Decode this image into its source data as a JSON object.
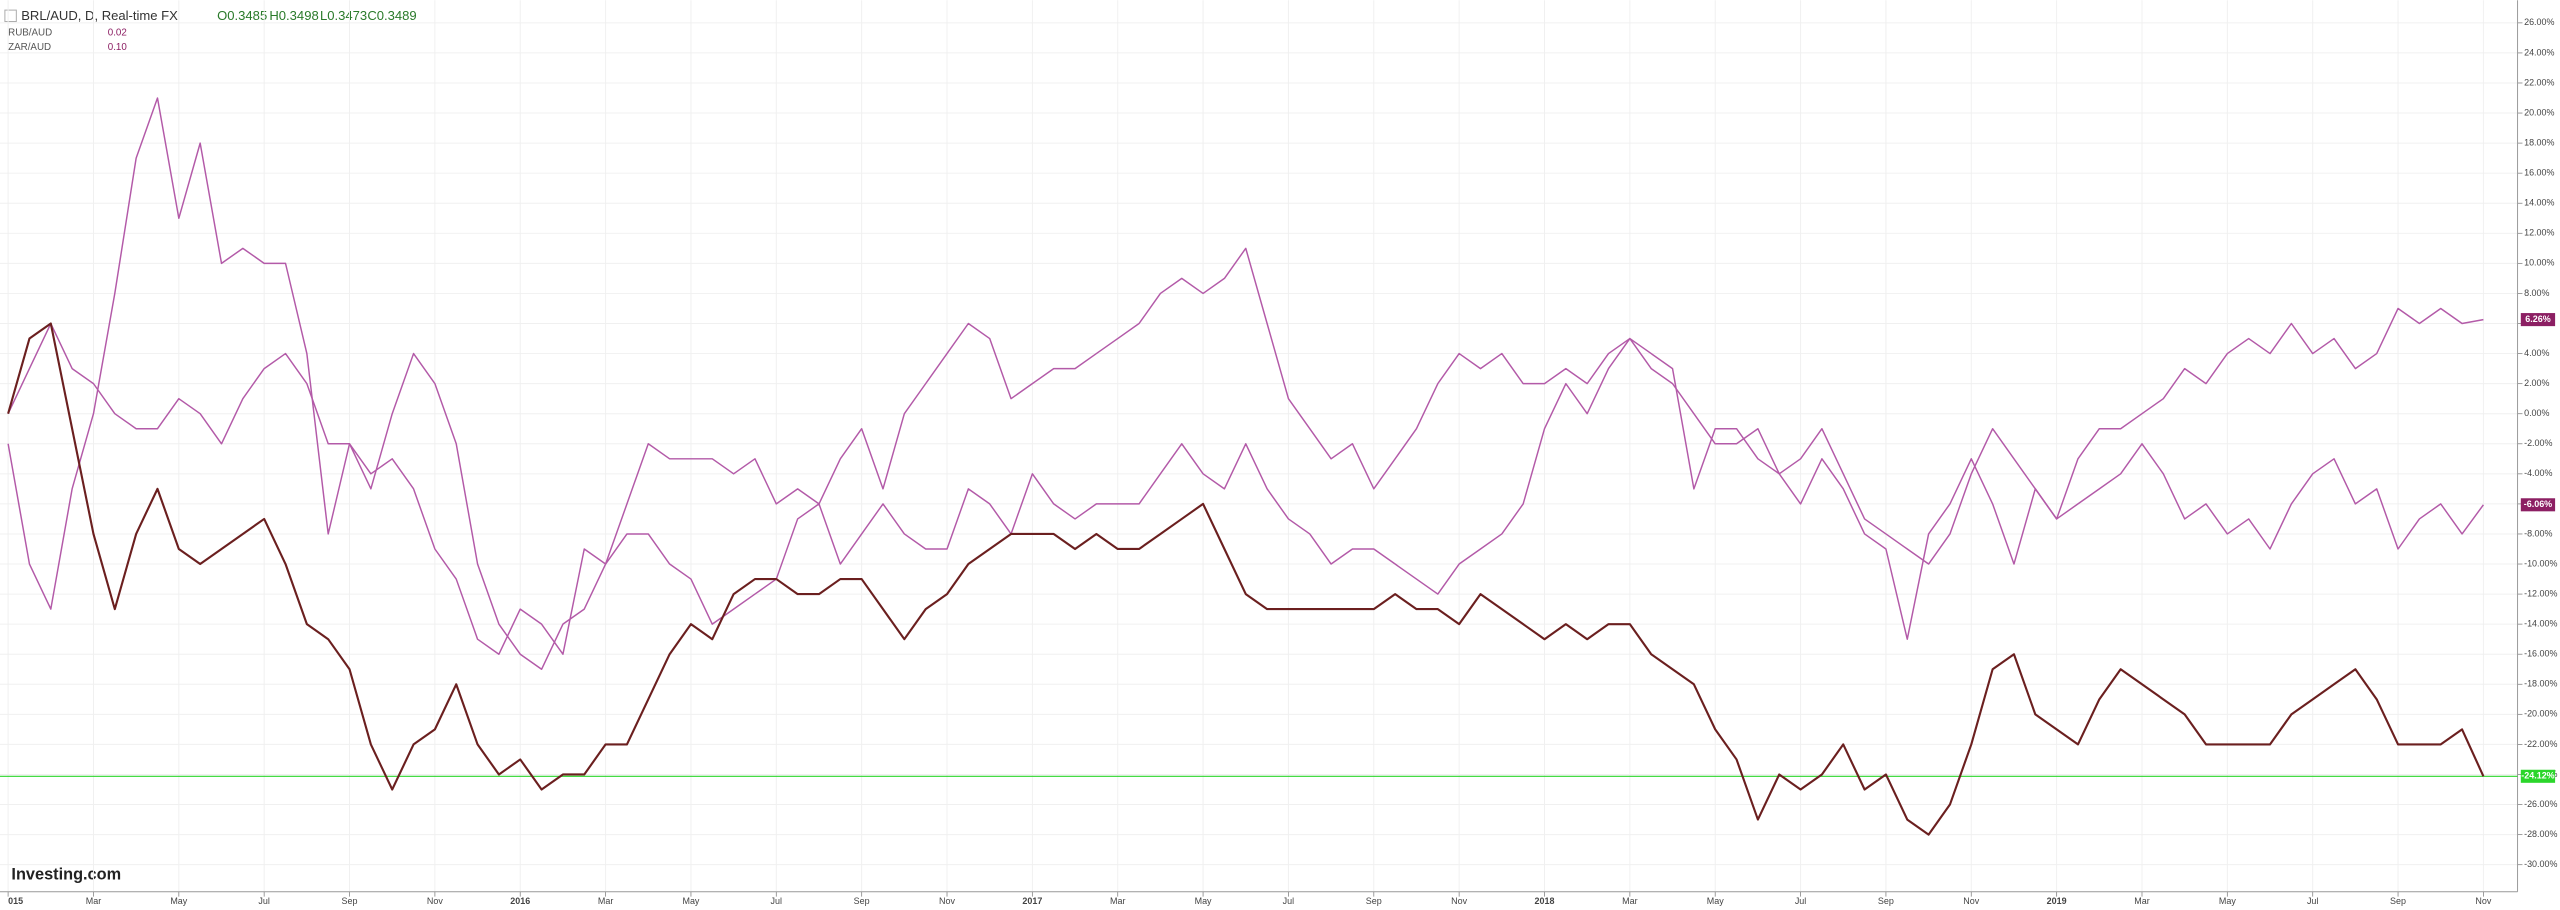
{
  "chart_data": {
    "type": "line",
    "title": "BRL/AUD, D, Real-time FX",
    "ohlc": [
      "O0.3485",
      "H0.3498",
      "L0.3473",
      "C0.3489"
    ],
    "watermark": "Investing.com",
    "x": [
      0,
      0.5,
      1,
      1.5,
      2,
      2.5,
      3,
      3.5,
      4,
      4.5,
      5,
      5.5,
      6,
      6.5,
      7,
      7.5,
      8,
      8.5,
      9,
      9.5,
      10,
      10.5,
      11,
      11.5,
      12,
      12.5,
      13,
      13.5,
      14,
      14.5,
      15,
      15.5,
      16,
      16.5,
      17,
      17.5,
      18,
      18.5,
      19,
      19.5,
      20,
      20.5,
      21,
      21.5,
      22,
      22.5,
      23,
      23.5,
      24,
      24.5,
      25,
      25.5,
      26,
      26.5,
      27,
      27.5,
      28,
      28.5,
      29,
      29.5,
      30,
      30.5,
      31,
      31.5,
      32,
      32.5,
      33,
      33.5,
      34,
      34.5,
      35,
      35.5,
      36,
      36.5,
      37,
      37.5,
      38,
      38.5,
      39,
      39.5,
      40,
      40.5,
      41,
      41.5,
      42,
      42.5,
      43,
      43.5,
      44,
      44.5,
      45,
      45.5,
      46,
      46.5,
      47,
      47.5,
      48,
      48.5,
      49,
      49.5,
      50,
      50.5,
      51,
      51.5,
      52,
      52.5,
      53,
      53.5,
      54,
      54.5,
      55,
      55.5,
      56,
      56.5,
      57,
      57.5,
      58
    ],
    "xlim": [
      -0.19,
      58.8
    ],
    "ylim": [
      -31.8,
      27.5
    ],
    "xticks": [
      {
        "value": 0,
        "label": "015"
      },
      {
        "value": 2,
        "label": "Mar"
      },
      {
        "value": 4,
        "label": "May"
      },
      {
        "value": 6,
        "label": "Jul"
      },
      {
        "value": 8,
        "label": "Sep"
      },
      {
        "value": 10,
        "label": "Nov"
      },
      {
        "value": 12,
        "label": "2016"
      },
      {
        "value": 14,
        "label": "Mar"
      },
      {
        "value": 16,
        "label": "May"
      },
      {
        "value": 18,
        "label": "Jul"
      },
      {
        "value": 20,
        "label": "Sep"
      },
      {
        "value": 22,
        "label": "Nov"
      },
      {
        "value": 24,
        "label": "2017"
      },
      {
        "value": 26,
        "label": "Mar"
      },
      {
        "value": 28,
        "label": "May"
      },
      {
        "value": 30,
        "label": "Jul"
      },
      {
        "value": 32,
        "label": "Sep"
      },
      {
        "value": 34,
        "label": "Nov"
      },
      {
        "value": 36,
        "label": "2018"
      },
      {
        "value": 38,
        "label": "Mar"
      },
      {
        "value": 40,
        "label": "May"
      },
      {
        "value": 42,
        "label": "Jul"
      },
      {
        "value": 44,
        "label": "Sep"
      },
      {
        "value": 46,
        "label": "Nov"
      },
      {
        "value": 48,
        "label": "2019"
      },
      {
        "value": 50,
        "label": "Mar"
      },
      {
        "value": 52,
        "label": "May"
      },
      {
        "value": 54,
        "label": "Jul"
      },
      {
        "value": 56,
        "label": "Sep"
      },
      {
        "value": 58,
        "label": "Nov"
      }
    ],
    "yticks": [
      {
        "value": 26,
        "label": "26.00%"
      },
      {
        "value": 24,
        "label": "24.00%"
      },
      {
        "value": 22,
        "label": "22.00%"
      },
      {
        "value": 20,
        "label": "20.00%"
      },
      {
        "value": 18,
        "label": "18.00%"
      },
      {
        "value": 16,
        "label": "16.00%"
      },
      {
        "value": 14,
        "label": "14.00%"
      },
      {
        "value": 12,
        "label": "12.00%"
      },
      {
        "value": 10,
        "label": "10.00%"
      },
      {
        "value": 8,
        "label": "8.00%"
      },
      {
        "value": 6,
        "label": "6.00%"
      },
      {
        "value": 4,
        "label": "4.00%"
      },
      {
        "value": 2,
        "label": "2.00%"
      },
      {
        "value": 0,
        "label": "0.00%"
      },
      {
        "value": -2,
        "label": "-2.00%"
      },
      {
        "value": -4,
        "label": "-4.00%"
      },
      {
        "value": -6,
        "label": "-6.00%"
      },
      {
        "value": -8,
        "label": "-8.00%"
      },
      {
        "value": -10,
        "label": "-10.00%"
      },
      {
        "value": -12,
        "label": "-12.00%"
      },
      {
        "value": -14,
        "label": "-14.00%"
      },
      {
        "value": -16,
        "label": "-16.00%"
      },
      {
        "value": -18,
        "label": "-18.00%"
      },
      {
        "value": -20,
        "label": "-20.00%"
      },
      {
        "value": -22,
        "label": "-22.00%"
      },
      {
        "value": -24,
        "label": "-24.00%"
      },
      {
        "value": -26,
        "label": "-26.00%"
      },
      {
        "value": -28,
        "label": "-28.00%"
      },
      {
        "value": -30,
        "label": "-30.00%"
      }
    ],
    "grid": true,
    "series": [
      {
        "name": "BRL/AUD",
        "color": "#6b1f1f",
        "end_label": "-24.12%",
        "end_color": "#2bd62b",
        "values": [
          0,
          5,
          6,
          -1,
          -8,
          -13,
          -8,
          -5,
          -9,
          -10,
          -9,
          -8,
          -7,
          -10,
          -14,
          -15,
          -17,
          -22,
          -25,
          -22,
          -21,
          -18,
          -22,
          -24,
          -23,
          -25,
          -24,
          -24,
          -22,
          -22,
          -19,
          -16,
          -14,
          -15,
          -12,
          -11,
          -11,
          -12,
          -12,
          -11,
          -11,
          -13,
          -15,
          -13,
          -12,
          -10,
          -9,
          -8,
          -8,
          -8,
          -9,
          -8,
          -9,
          -9,
          -8,
          -7,
          -6,
          -9,
          -12,
          -13,
          -13,
          -13,
          -13,
          -13,
          -13,
          -12,
          -13,
          -13,
          -14,
          -12,
          -13,
          -14,
          -15,
          -14,
          -15,
          -14,
          -14,
          -16,
          -17,
          -18,
          -21,
          -23,
          -27,
          -24,
          -25,
          -24,
          -22,
          -25,
          -24,
          -27,
          -28,
          -26,
          -22,
          -17,
          -16,
          -20,
          -21,
          -22,
          -19,
          -17,
          -18,
          -19,
          -20,
          -22,
          -22,
          -22,
          -22,
          -20,
          -19,
          -18,
          -17,
          -19,
          -22,
          -22,
          -22,
          -21,
          -24.12
        ]
      },
      {
        "name": "RUB/AUD",
        "legend_value": "0.02",
        "color": "#b35aa8",
        "end_label": "-6.06%",
        "end_color": "#8c1f63",
        "values": [
          0,
          3,
          6,
          3,
          2,
          0,
          -1,
          -1,
          1,
          0,
          -2,
          1,
          3,
          4,
          2,
          -2,
          -2,
          -5,
          0,
          4,
          2,
          -2,
          -10,
          -14,
          -16,
          -17,
          -14,
          -13,
          -10,
          -8,
          -8,
          -10,
          -11,
          -14,
          -13,
          -12,
          -11,
          -7,
          -6,
          -10,
          -8,
          -6,
          -8,
          -9,
          -9,
          -5,
          -6,
          -8,
          -4,
          -6,
          -7,
          -6,
          -6,
          -6,
          -4,
          -2,
          -4,
          -5,
          -2,
          -5,
          -7,
          -8,
          -10,
          -9,
          -9,
          -10,
          -11,
          -12,
          -10,
          -9,
          -8,
          -6,
          -1,
          2,
          0,
          3,
          5,
          3,
          2,
          0,
          -2,
          -2,
          -1,
          -4,
          -3,
          -1,
          -4,
          -7,
          -8,
          -9,
          -10,
          -8,
          -4,
          -1,
          -3,
          -5,
          -7,
          -6,
          -5,
          -4,
          -2,
          -4,
          -7,
          -6,
          -8,
          -7,
          -9,
          -6,
          -4,
          -3,
          -6,
          -5,
          -9,
          -7,
          -6,
          -8,
          -6.06
        ]
      },
      {
        "name": "ZAR/AUD",
        "legend_value": "0.10",
        "color": "#b35aa8",
        "end_label": "6.26%",
        "end_color": "#8c1f63",
        "values": [
          -2,
          -10,
          -13,
          -5,
          0,
          8,
          17,
          21,
          13,
          18,
          10,
          11,
          10,
          10,
          4,
          -8,
          -2,
          -4,
          -3,
          -5,
          -9,
          -11,
          -15,
          -16,
          -13,
          -14,
          -16,
          -9,
          -10,
          -6,
          -2,
          -3,
          -3,
          -3,
          -4,
          -3,
          -6,
          -5,
          -6,
          -3,
          -1,
          -5,
          0,
          2,
          4,
          6,
          5,
          1,
          2,
          3,
          3,
          4,
          5,
          6,
          8,
          9,
          8,
          9,
          11,
          6,
          1,
          -1,
          -3,
          -2,
          -5,
          -3,
          -1,
          2,
          4,
          3,
          4,
          2,
          2,
          3,
          2,
          4,
          5,
          4,
          3,
          -5,
          -1,
          -1,
          -3,
          -4,
          -6,
          -3,
          -5,
          -8,
          -9,
          -15,
          -8,
          -6,
          -3,
          -6,
          -10,
          -5,
          -7,
          -3,
          -1,
          -1,
          0,
          1,
          3,
          2,
          4,
          5,
          4,
          6,
          4,
          5,
          3,
          4,
          7,
          6,
          7,
          6,
          6.26
        ]
      }
    ]
  }
}
